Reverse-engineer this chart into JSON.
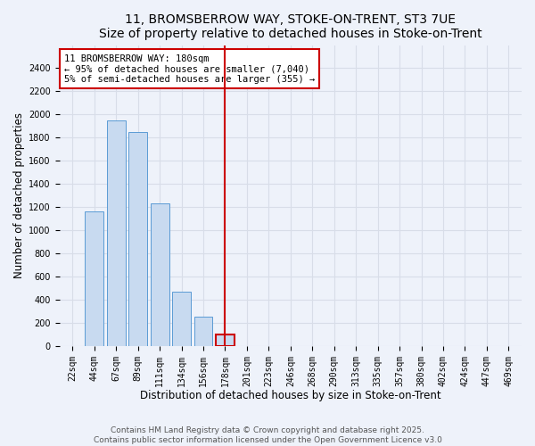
{
  "title1": "11, BROMSBERROW WAY, STOKE-ON-TRENT, ST3 7UE",
  "title2": "Size of property relative to detached houses in Stoke-on-Trent",
  "xlabel": "Distribution of detached houses by size in Stoke-on-Trent",
  "ylabel": "Number of detached properties",
  "categories": [
    "22sqm",
    "44sqm",
    "67sqm",
    "89sqm",
    "111sqm",
    "134sqm",
    "156sqm",
    "178sqm",
    "201sqm",
    "223sqm",
    "246sqm",
    "268sqm",
    "290sqm",
    "313sqm",
    "335sqm",
    "357sqm",
    "380sqm",
    "402sqm",
    "424sqm",
    "447sqm",
    "469sqm"
  ],
  "values": [
    0,
    1160,
    1950,
    1850,
    1230,
    470,
    255,
    100,
    0,
    0,
    0,
    0,
    0,
    0,
    0,
    0,
    0,
    0,
    0,
    0,
    0
  ],
  "bar_color": "#c8daf0",
  "bar_edge_color": "#5b9bd5",
  "highlight_bar_index": 7,
  "highlight_bar_edge_color": "#cc0000",
  "vline_color": "#cc0000",
  "annotation_line1": "11 BROMSBERROW WAY: 180sqm",
  "annotation_line2": "← 95% of detached houses are smaller (7,040)",
  "annotation_line3": "5% of semi-detached houses are larger (355) →",
  "annotation_box_edge_color": "#cc0000",
  "annotation_box_face_color": "#ffffff",
  "ylim": [
    0,
    2600
  ],
  "yticks": [
    0,
    200,
    400,
    600,
    800,
    1000,
    1200,
    1400,
    1600,
    1800,
    2000,
    2200,
    2400
  ],
  "footnote1": "Contains HM Land Registry data © Crown copyright and database right 2025.",
  "footnote2": "Contains public sector information licensed under the Open Government Licence v3.0",
  "bg_color": "#eef2fa",
  "grid_color": "#d8dde8",
  "title_fontsize": 10,
  "subtitle_fontsize": 9,
  "axis_label_fontsize": 8.5,
  "tick_fontsize": 7,
  "annotation_fontsize": 7.5,
  "footnote_fontsize": 6.5
}
